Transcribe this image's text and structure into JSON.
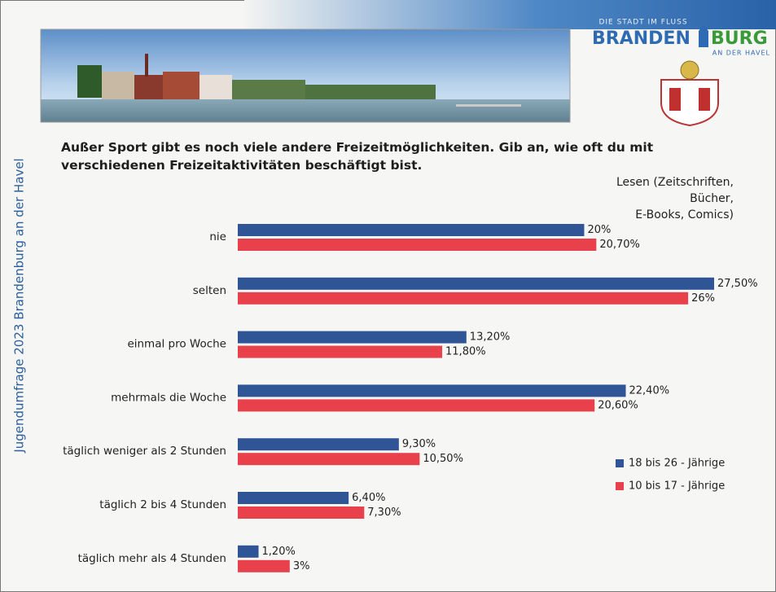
{
  "header": {
    "side_text": "Jugendumfrage 2023 Brandenburg an der Havel",
    "logo": {
      "tagline": "DIE STADT IM FLUSS",
      "name_left": "BRANDEN",
      "name_right": "BURG",
      "sub": "AN DER HAVEL"
    }
  },
  "chart_data": {
    "type": "bar",
    "orientation": "horizontal",
    "title": "Außer Sport gibt es noch viele andere Freizeitmöglichkeiten. Gib an, wie oft du mit verschiedenen Freizeitaktivitäten beschäftigt bist.",
    "subtitle": "Lesen (Zeitschriften,\nBücher,\nE-Books, Comics)",
    "categories": [
      "nie",
      "selten",
      "einmal pro Woche",
      "mehrmals die Woche",
      "täglich weniger als 2 Stunden",
      "täglich 2 bis 4 Stunden",
      "täglich mehr als 4 Stunden"
    ],
    "series": [
      {
        "name": "18 bis 26 - Jährige",
        "color": "#2f5597",
        "values": [
          20,
          27.5,
          13.2,
          22.4,
          9.3,
          6.4,
          1.2
        ],
        "value_labels": [
          "20%",
          "27,50%",
          "13,20%",
          "22,40%",
          "9,30%",
          "6,40%",
          "1,20%"
        ]
      },
      {
        "name": "10 bis 17 - Jährige",
        "color": "#e8414b",
        "values": [
          20.7,
          26,
          11.8,
          20.6,
          10.5,
          7.3,
          3
        ],
        "value_labels": [
          "20,70%",
          "26%",
          "11,80%",
          "20,60%",
          "10,50%",
          "7,30%",
          "3%"
        ]
      }
    ],
    "legend": "right"
  }
}
